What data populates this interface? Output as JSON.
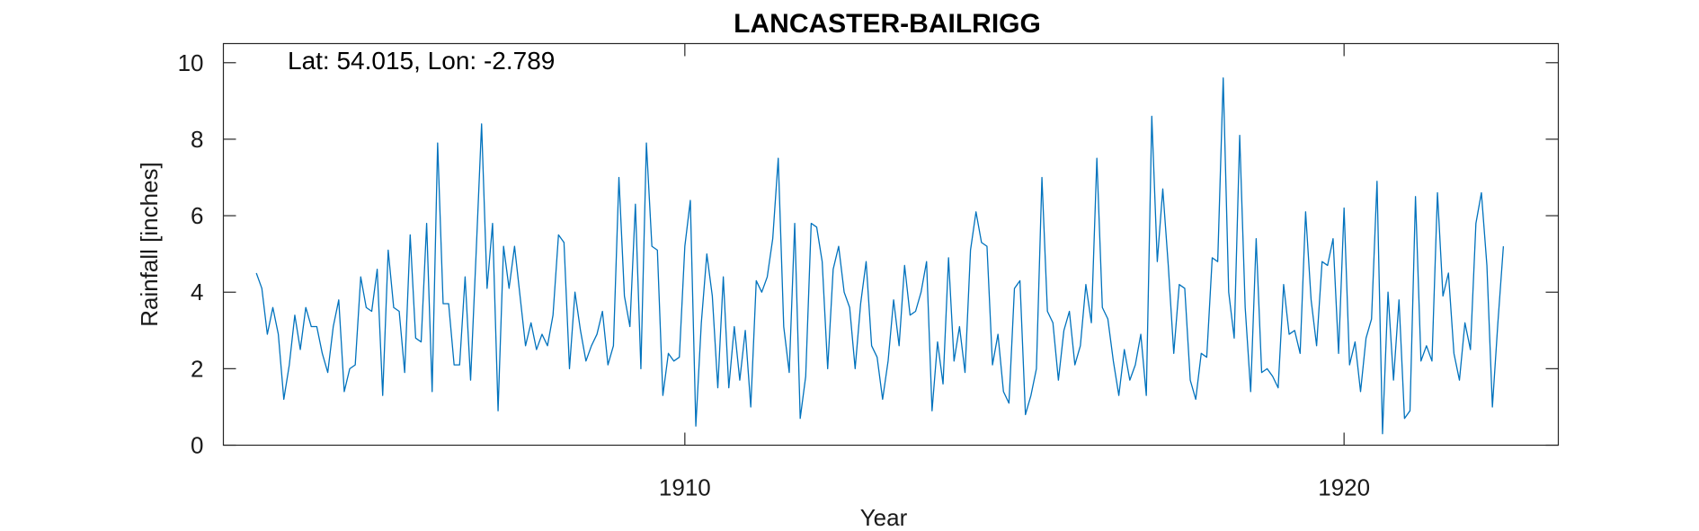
{
  "chart_data": {
    "type": "line",
    "title": "LANCASTER-BAILRIGG",
    "annotation": "Lat: 54.015, Lon: -2.789",
    "xlabel": "Year",
    "ylabel": "Rainfall [inches]",
    "xlim": [
      1903.0,
      1923.25
    ],
    "ylim": [
      0,
      10.5
    ],
    "xticks": [
      1910,
      1920
    ],
    "yticks": [
      0,
      2,
      4,
      6,
      8,
      10
    ],
    "grid": false,
    "line_color": "#0072BD",
    "series": [
      {
        "x_start": 1903.5,
        "x_step": 0.0833333,
        "values": [
          4.5,
          4.1,
          2.9,
          3.6,
          2.9,
          1.2,
          2.1,
          3.4,
          2.5,
          3.6,
          3.1,
          3.1,
          2.4,
          1.9,
          3.1,
          3.8,
          1.4,
          2.0,
          2.1,
          4.4,
          3.6,
          3.5,
          4.6,
          1.3,
          5.1,
          3.6,
          3.5,
          1.9,
          5.5,
          2.8,
          2.7,
          5.8,
          1.4,
          7.9,
          3.7,
          3.7,
          2.1,
          2.1,
          4.4,
          1.7,
          5.0,
          8.4,
          4.1,
          5.8,
          0.9,
          5.2,
          4.1,
          5.2,
          3.9,
          2.6,
          3.2,
          2.5,
          2.9,
          2.6,
          3.4,
          5.5,
          5.3,
          2.0,
          4.0,
          3.0,
          2.2,
          2.6,
          2.9,
          3.5,
          2.1,
          2.6,
          7.0,
          3.9,
          3.1,
          6.3,
          2.0,
          7.9,
          5.2,
          5.1,
          1.3,
          2.4,
          2.2,
          2.3,
          5.2,
          6.4,
          0.5,
          3.2,
          5.0,
          3.9,
          1.5,
          4.4,
          1.5,
          3.1,
          1.7,
          3.0,
          1.0,
          4.3,
          4.0,
          4.4,
          5.4,
          7.5,
          3.1,
          1.9,
          5.8,
          0.7,
          1.8,
          5.8,
          5.7,
          4.8,
          2.0,
          4.6,
          5.2,
          4.0,
          3.6,
          2.0,
          3.7,
          4.8,
          2.6,
          2.3,
          1.2,
          2.2,
          3.8,
          2.6,
          4.7,
          3.4,
          3.5,
          4.0,
          4.8,
          0.9,
          2.7,
          1.6,
          4.9,
          2.2,
          3.1,
          1.9,
          5.1,
          6.1,
          5.3,
          5.2,
          2.1,
          2.9,
          1.4,
          1.1,
          4.1,
          4.3,
          0.8,
          1.3,
          2.0,
          7.0,
          3.5,
          3.2,
          1.7,
          3.0,
          3.5,
          2.1,
          2.6,
          4.2,
          3.2,
          7.5,
          3.6,
          3.3,
          2.2,
          1.3,
          2.5,
          1.7,
          2.1,
          2.9,
          1.3,
          8.6,
          4.8,
          6.7,
          4.7,
          2.4,
          4.2,
          4.1,
          1.7,
          1.2,
          2.4,
          2.3,
          4.9,
          4.8,
          9.6,
          4.0,
          2.8,
          8.1,
          3.6,
          1.4,
          5.4,
          1.9,
          2.0,
          1.8,
          1.5,
          4.2,
          2.9,
          3.0,
          2.4,
          6.1,
          3.8,
          2.6,
          4.8,
          4.7,
          5.4,
          2.4,
          6.2,
          2.1,
          2.7,
          1.4,
          2.8,
          3.3,
          6.9,
          0.3,
          4.0,
          1.7,
          3.8,
          0.7,
          0.9,
          6.5,
          2.2,
          2.6,
          2.2,
          6.6,
          3.9,
          4.5,
          2.4,
          1.7,
          3.2,
          2.5,
          5.8,
          6.6,
          4.7,
          1.0,
          3.2,
          5.2
        ]
      }
    ]
  }
}
